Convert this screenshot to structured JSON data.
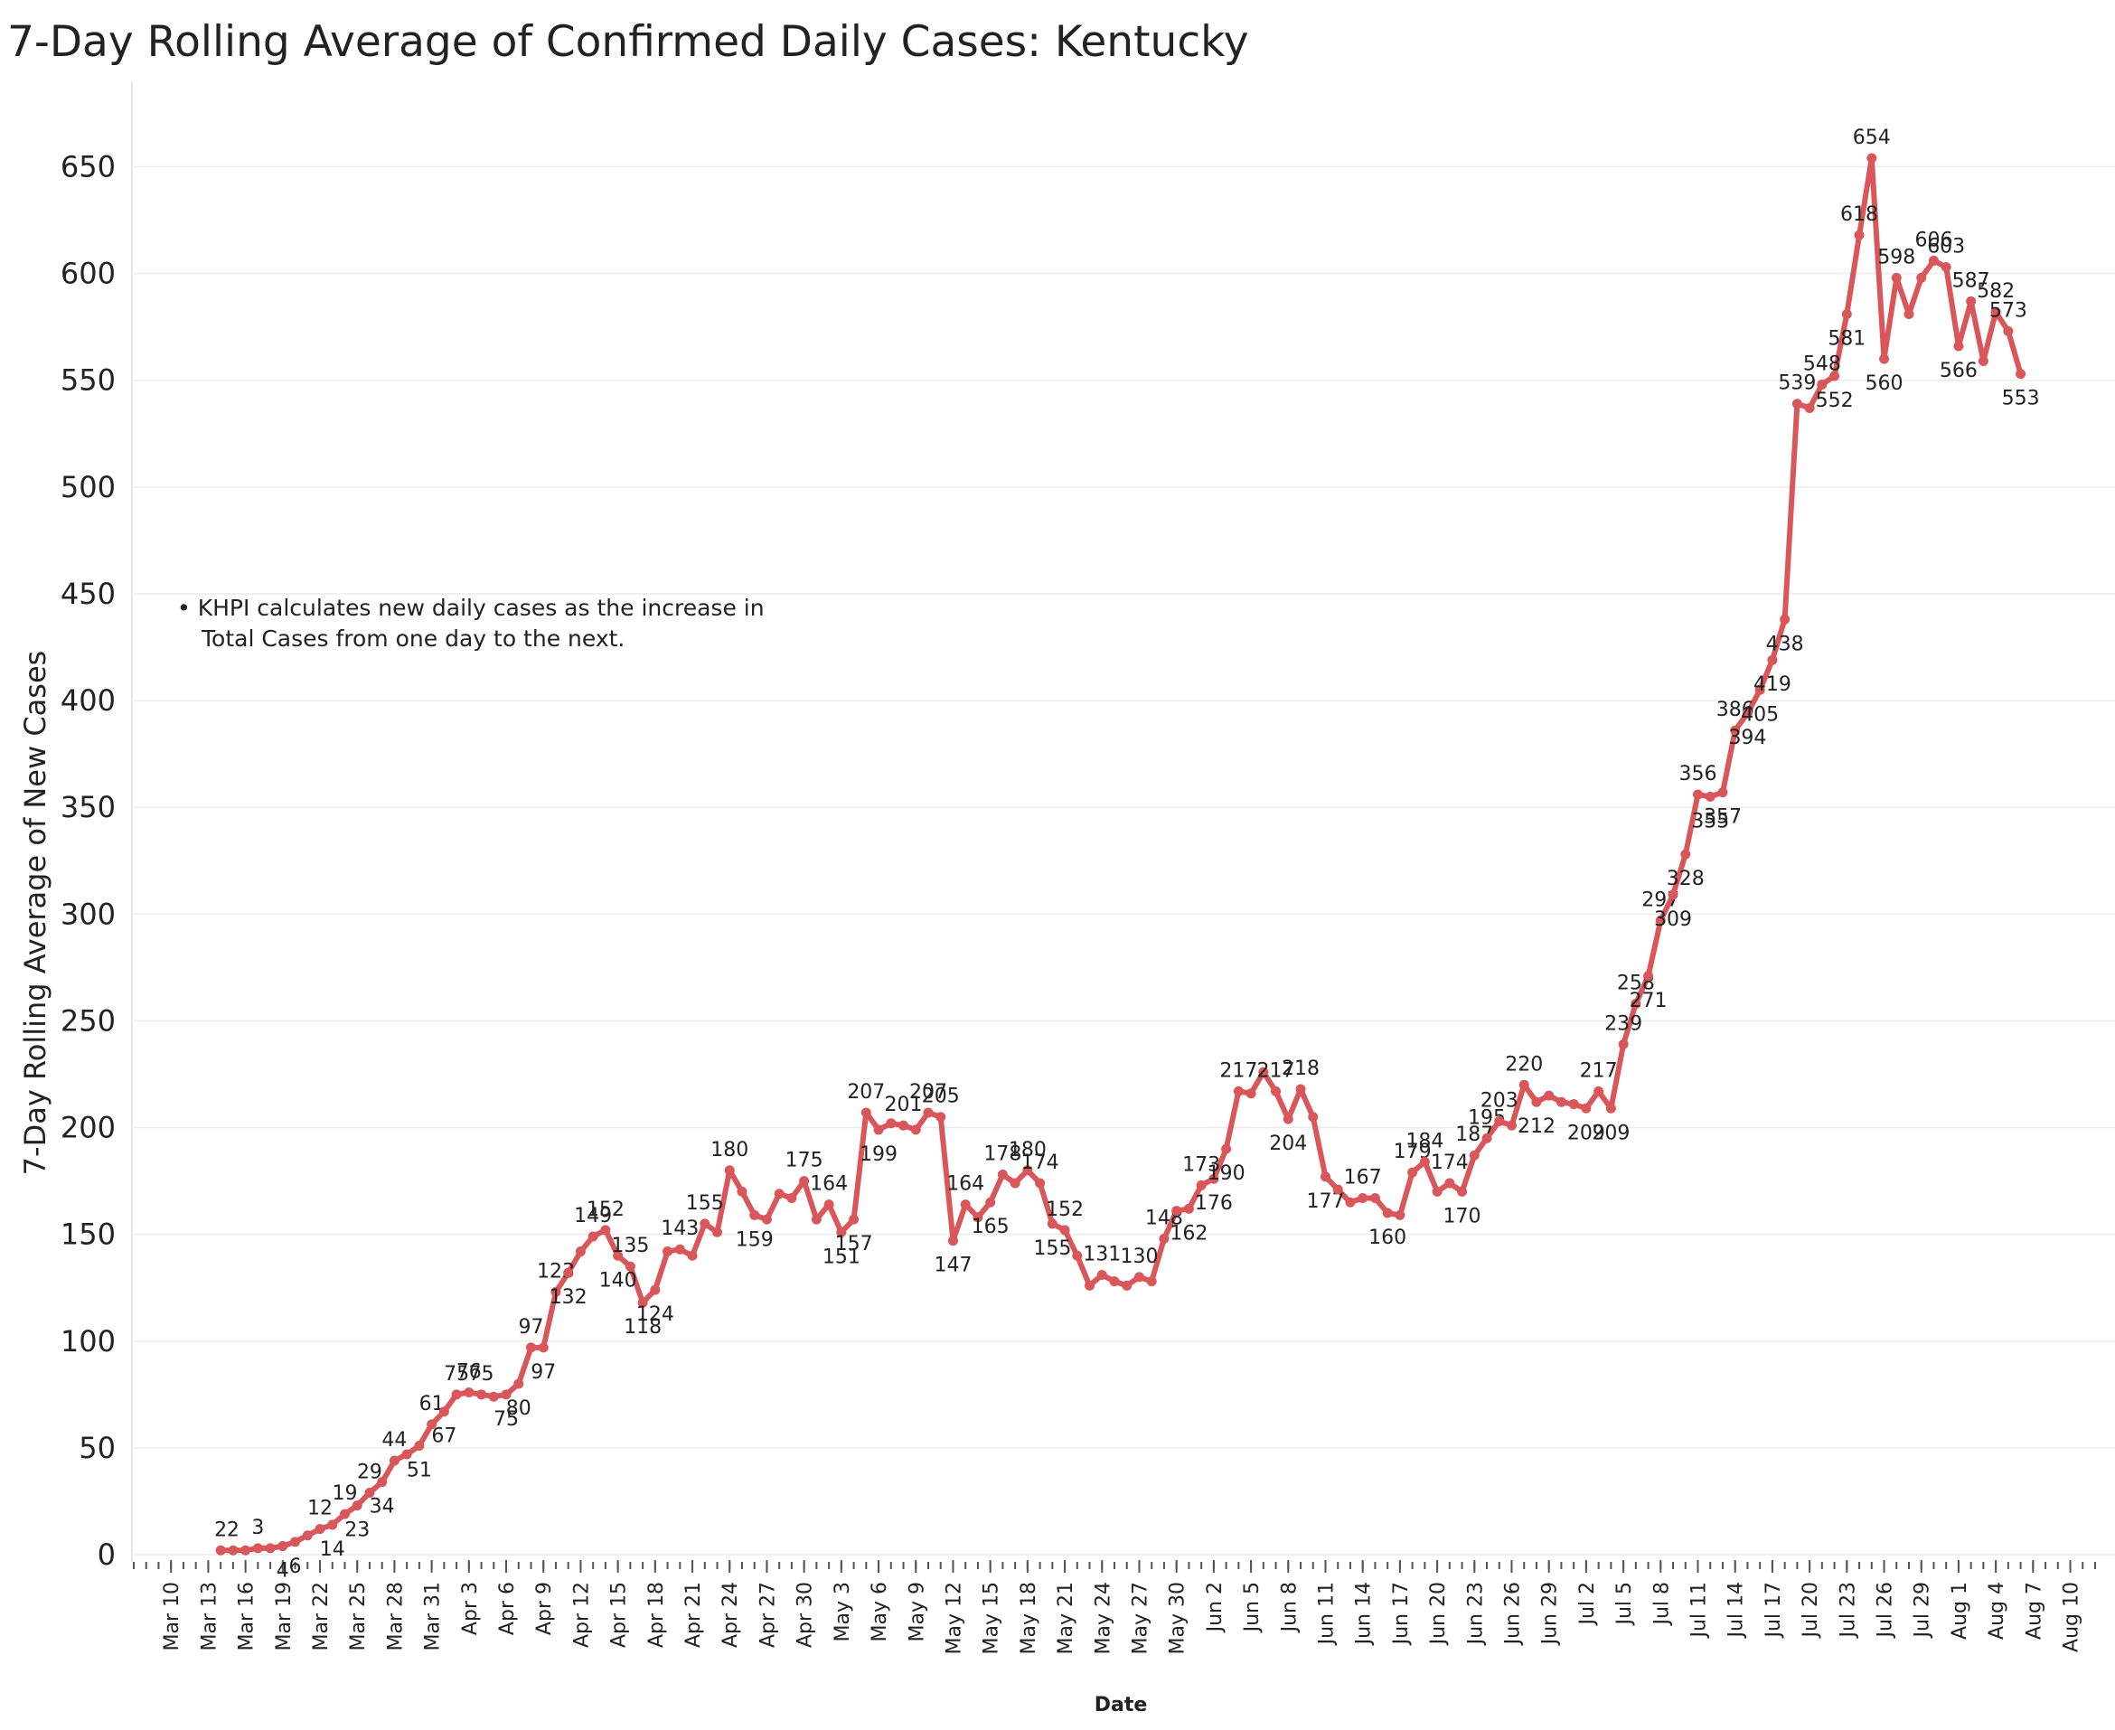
{
  "chart_data": {
    "type": "line",
    "title": "7-Day Rolling Average of Confirmed Daily  Cases:  Kentucky",
    "y_axis_label": "7-Day Rolling  Average of New Cases",
    "x_axis_label": "Date",
    "annotation": [
      "• KHPI calculates new daily cases as the increase in",
      "Total Cases from one day to the next."
    ],
    "grid": true,
    "color": "#d9575b",
    "ylim": [
      0,
      690
    ],
    "yticks": [
      0,
      50,
      100,
      150,
      200,
      250,
      300,
      350,
      400,
      450,
      500,
      550,
      600,
      650
    ],
    "xlim": [
      "Mar 7",
      "Aug 12"
    ],
    "xticks": [
      "Mar 10",
      "Mar 13",
      "Mar 16",
      "Mar 19",
      "Mar 22",
      "Mar 25",
      "Mar 28",
      "Mar 31",
      "Apr 3",
      "Apr 6",
      "Apr 9",
      "Apr 12",
      "Apr 15",
      "Apr 18",
      "Apr 21",
      "Apr 24",
      "Apr 27",
      "Apr 30",
      "May 3",
      "May 6",
      "May 9",
      "May 12",
      "May 15",
      "May 18",
      "May 21",
      "May 24",
      "May 27",
      "May 30",
      "Jun 2",
      "Jun 5",
      "Jun 8",
      "Jun 11",
      "Jun 14",
      "Jun 17",
      "Jun 20",
      "Jun 23",
      "Jun 26",
      "Jun 29",
      "Jul 2",
      "Jul 5",
      "Jul 8",
      "Jul 11",
      "Jul 14",
      "Jul 17",
      "Jul 20",
      "Jul 23",
      "Jul 26",
      "Jul 29",
      "Aug 1",
      "Aug 4",
      "Aug 7",
      "Aug 10"
    ],
    "x": [
      "Mar 14",
      "Mar 15",
      "Mar 16",
      "Mar 17",
      "Mar 18",
      "Mar 19",
      "Mar 20",
      "Mar 21",
      "Mar 22",
      "Mar 23",
      "Mar 24",
      "Mar 25",
      "Mar 26",
      "Mar 27",
      "Mar 28",
      "Mar 29",
      "Mar 30",
      "Mar 31",
      "Apr 1",
      "Apr 2",
      "Apr 3",
      "Apr 4",
      "Apr 5",
      "Apr 6",
      "Apr 7",
      "Apr 8",
      "Apr 9",
      "Apr 10",
      "Apr 11",
      "Apr 12",
      "Apr 13",
      "Apr 14",
      "Apr 15",
      "Apr 16",
      "Apr 17",
      "Apr 18",
      "Apr 19",
      "Apr 20",
      "Apr 21",
      "Apr 22",
      "Apr 23",
      "Apr 24",
      "Apr 25",
      "Apr 26",
      "Apr 27",
      "Apr 28",
      "Apr 29",
      "Apr 30",
      "May 1",
      "May 2",
      "May 3",
      "May 4",
      "May 5",
      "May 6",
      "May 7",
      "May 8",
      "May 9",
      "May 10",
      "May 11",
      "May 12",
      "May 13",
      "May 14",
      "May 15",
      "May 16",
      "May 17",
      "May 18",
      "May 19",
      "May 20",
      "May 21",
      "May 22",
      "May 23",
      "May 24",
      "May 25",
      "May 26",
      "May 27",
      "May 28",
      "May 29",
      "May 30",
      "May 31",
      "Jun 1",
      "Jun 2",
      "Jun 3",
      "Jun 4",
      "Jun 5",
      "Jun 6",
      "Jun 7",
      "Jun 8",
      "Jun 9",
      "Jun 10",
      "Jun 11",
      "Jun 12",
      "Jun 13",
      "Jun 14",
      "Jun 15",
      "Jun 16",
      "Jun 17",
      "Jun 18",
      "Jun 19",
      "Jun 20",
      "Jun 21",
      "Jun 22",
      "Jun 23",
      "Jun 24",
      "Jun 25",
      "Jun 26",
      "Jun 27",
      "Jun 28",
      "Jun 29",
      "Jun 30",
      "Jul 1",
      "Jul 2",
      "Jul 3",
      "Jul 4",
      "Jul 5",
      "Jul 6",
      "Jul 7",
      "Jul 8",
      "Jul 9",
      "Jul 10",
      "Jul 11",
      "Jul 12",
      "Jul 13",
      "Jul 14",
      "Jul 15",
      "Jul 16",
      "Jul 17",
      "Jul 18",
      "Jul 19",
      "Jul 20",
      "Jul 21",
      "Jul 22",
      "Jul 23",
      "Jul 24",
      "Jul 25",
      "Jul 26",
      "Jul 27",
      "Jul 28",
      "Jul 29",
      "Jul 30",
      "Jul 31",
      "Aug 1",
      "Aug 2",
      "Aug 3",
      "Aug 4",
      "Aug 5",
      "Aug 6"
    ],
    "values": [
      2,
      2,
      2,
      3,
      3,
      4,
      6,
      9,
      12,
      14,
      19,
      23,
      29,
      34,
      44,
      47,
      51,
      61,
      67,
      75,
      76,
      75,
      74,
      75,
      80,
      97,
      97,
      123,
      132,
      142,
      149,
      152,
      140,
      135,
      118,
      124,
      142,
      143,
      140,
      155,
      151,
      180,
      170,
      159,
      157,
      169,
      167,
      175,
      157,
      164,
      151,
      157,
      207,
      199,
      202,
      201,
      199,
      207,
      205,
      147,
      164,
      158,
      165,
      178,
      174,
      180,
      174,
      155,
      152,
      140,
      126,
      131,
      128,
      126,
      130,
      128,
      148,
      161,
      162,
      173,
      176,
      190,
      217,
      216,
      226,
      217,
      204,
      218,
      205,
      177,
      171,
      165,
      167,
      167,
      160,
      159,
      179,
      184,
      170,
      174,
      170,
      187,
      195,
      203,
      201,
      220,
      212,
      215,
      212,
      211,
      209,
      217,
      209,
      239,
      258,
      271,
      297,
      309,
      328,
      356,
      355,
      357,
      386,
      394,
      405,
      419,
      438,
      539,
      537,
      548,
      552,
      581,
      618,
      654,
      560,
      598,
      581,
      598,
      606,
      603,
      566,
      587,
      559,
      582,
      573,
      553
    ],
    "value_labels": [
      "2",
      "2",
      null,
      "3",
      null,
      "4",
      "6",
      null,
      "12",
      "14",
      "19",
      "23",
      "29",
      "34",
      "44",
      null,
      "51",
      "61",
      "67",
      "75",
      "76",
      "75",
      null,
      "75",
      "80",
      "97",
      "97",
      "123",
      "132",
      null,
      "149",
      "152",
      "140",
      "135",
      "118",
      "124",
      null,
      "143",
      null,
      "155",
      null,
      "180",
      null,
      "159",
      null,
      null,
      null,
      "175",
      null,
      "164",
      "151",
      "157",
      "207",
      "199",
      null,
      "201",
      null,
      "207",
      "205",
      "147",
      "164",
      null,
      "165",
      "178",
      null,
      "180",
      "174",
      "155",
      "152",
      null,
      null,
      "131",
      null,
      null,
      "130",
      null,
      "148",
      null,
      "162",
      "173",
      "176",
      "190",
      "217",
      null,
      null,
      "217",
      "204",
      "218",
      null,
      "177",
      null,
      null,
      "167",
      null,
      "160",
      null,
      "179",
      "184",
      null,
      "174",
      "170",
      "187",
      "195",
      "203",
      null,
      "220",
      "212",
      null,
      null,
      null,
      "209",
      "217",
      "209",
      "239",
      "258",
      "271",
      "297",
      "309",
      "328",
      "356",
      "355",
      "357",
      "386",
      "394",
      "405",
      "419",
      "438",
      "539",
      null,
      "548",
      "552",
      "581",
      "618",
      "654",
      "560",
      "598",
      null,
      null,
      "606",
      "603",
      "566",
      "587",
      null,
      "582",
      "573",
      "553"
    ]
  }
}
